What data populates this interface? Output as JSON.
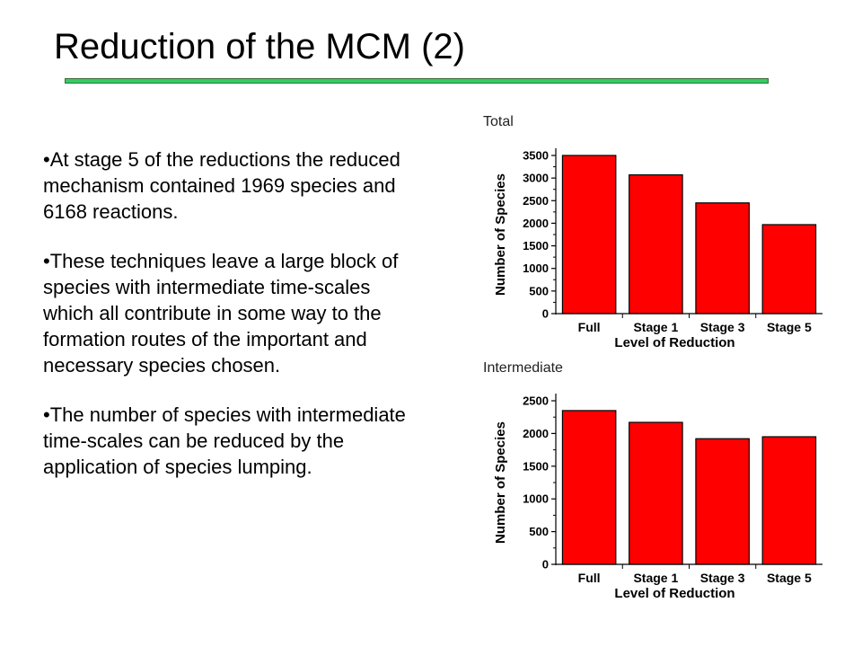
{
  "slide": {
    "title": "Reduction of the MCM (2)",
    "accent_color": "#33cc66",
    "bullets": [
      "•At stage 5 of the reductions the reduced mechanism contained 1969 species and 6168 reactions.",
      "•These techniques leave a large block of species with intermediate time-scales which all contribute in some way to the formation routes of the important and necessary species chosen.",
      "•The number of species with intermediate time-scales can be reduced by the application of species lumping."
    ]
  },
  "chart_data": [
    {
      "type": "bar",
      "label": "Total",
      "categories": [
        "Full",
        "Stage 1",
        "Stage 3",
        "Stage 5"
      ],
      "values": [
        3500,
        3070,
        2450,
        1969
      ],
      "xlabel": "Level of Reduction",
      "ylabel": "Number of Species",
      "ylim": [
        0,
        3500
      ],
      "yticks": [
        0,
        500,
        1000,
        1500,
        2000,
        2500,
        3000,
        3500
      ],
      "bar_color": "#ff0000",
      "grid": false
    },
    {
      "type": "bar",
      "label": "Intermediate",
      "categories": [
        "Full",
        "Stage 1",
        "Stage 3",
        "Stage 5"
      ],
      "values": [
        2350,
        2170,
        1920,
        1950
      ],
      "xlabel": "Level of Reduction",
      "ylabel": "Number of Species",
      "ylim": [
        0,
        2500
      ],
      "yticks": [
        0,
        500,
        1000,
        1500,
        2000,
        2500
      ],
      "bar_color": "#ff0000",
      "grid": false
    }
  ]
}
